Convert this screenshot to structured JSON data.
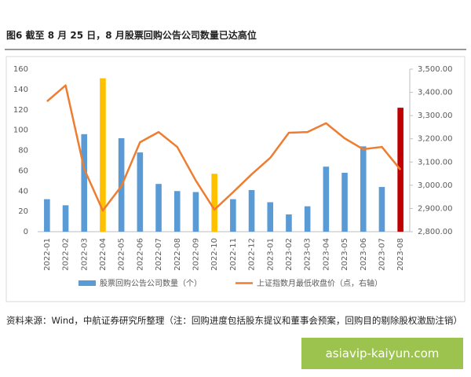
{
  "chart_data": {
    "type": "bar_line",
    "title": "图6 截至 8 月 25 日，8 月股票回购公告公司数量已达高位",
    "categories": [
      "2022-01",
      "2022-02",
      "2022-03",
      "2022-04",
      "2022-05",
      "2022-06",
      "2022-07",
      "2022-08",
      "2022-09",
      "2022-10",
      "2022-11",
      "2022-12",
      "2023-01",
      "2023-02",
      "2023-03",
      "2023-04",
      "2023-05",
      "2023-06",
      "2023-07",
      "2023-08"
    ],
    "series": [
      {
        "name": "股票回购公告公司数量（个）",
        "type": "bar",
        "color": "#5b9bd5",
        "colors": [
          "#5b9bd5",
          "#5b9bd5",
          "#5b9bd5",
          "#ffc000",
          "#5b9bd5",
          "#5b9bd5",
          "#5b9bd5",
          "#5b9bd5",
          "#5b9bd5",
          "#ffc000",
          "#5b9bd5",
          "#5b9bd5",
          "#5b9bd5",
          "#5b9bd5",
          "#5b9bd5",
          "#5b9bd5",
          "#5b9bd5",
          "#5b9bd5",
          "#5b9bd5",
          "#c00000"
        ],
        "values": [
          32,
          26,
          96,
          151,
          92,
          78,
          47,
          40,
          39,
          57,
          32,
          41,
          29,
          17,
          25,
          64,
          58,
          84,
          44,
          122
        ]
      },
      {
        "name": "上证指数月最低收盘价（点，右轴）",
        "type": "line",
        "axis": "y2",
        "color": "#ed7d31",
        "values": [
          3361,
          3430,
          3070,
          2891,
          2996,
          3185,
          3229,
          3165,
          3020,
          2895,
          2970,
          3047,
          3118,
          3226,
          3229,
          3267,
          3202,
          3155,
          3165,
          3067
        ]
      }
    ],
    "ylim": [
      0,
      160
    ],
    "yticks": [
      0,
      20,
      40,
      60,
      80,
      100,
      120,
      140,
      160
    ],
    "y2lim": [
      2800,
      3500
    ],
    "y2ticks": [
      {
        "value": 2800,
        "label": "2,800.00"
      },
      {
        "value": 2900,
        "label": "2,900.00"
      },
      {
        "value": 3000,
        "label": "3,000.00"
      },
      {
        "value": 3100,
        "label": "3,100.00"
      },
      {
        "value": 3200,
        "label": "3,200.00"
      },
      {
        "value": 3300,
        "label": "3,300.00"
      },
      {
        "value": 3400,
        "label": "3,400.00"
      },
      {
        "value": 3500,
        "label": "3,500.00"
      }
    ],
    "source": "资料来源：Wind，中航证券研究所整理（注：回购进度包括股东提议和董事会预案，回购目的剔除股权激励注销）"
  },
  "watermark": "asiavip-kaiyun.com"
}
